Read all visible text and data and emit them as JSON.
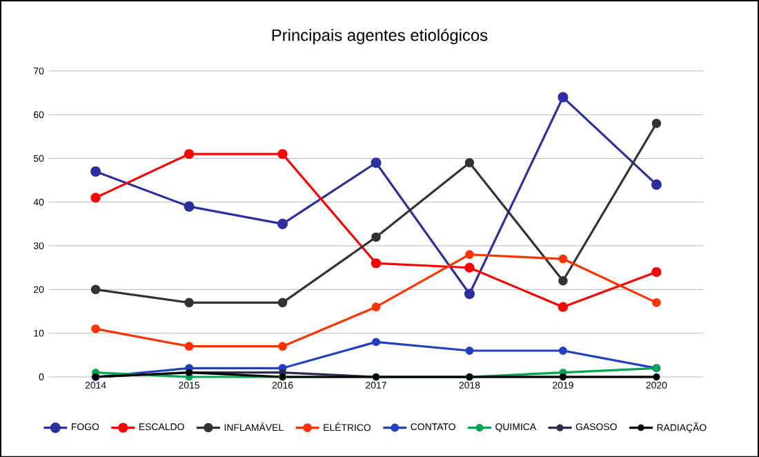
{
  "chart_data": {
    "type": "line",
    "title": "Principais agentes etiológicos",
    "categories": [
      "2014",
      "2015",
      "2016",
      "2017",
      "2018",
      "2019",
      "2020"
    ],
    "series": [
      {
        "name": "FOGO",
        "color": "#2b2fa0",
        "values": [
          47,
          39,
          35,
          49,
          19,
          64,
          44
        ]
      },
      {
        "name": "ESCALDO",
        "color": "#ff0000",
        "values": [
          41,
          51,
          51,
          26,
          25,
          16,
          24
        ]
      },
      {
        "name": "INFLAMÁVEL",
        "color": "#333333",
        "values": [
          20,
          17,
          17,
          32,
          49,
          22,
          58
        ]
      },
      {
        "name": "ELÉTRICO",
        "color": "#ff3300",
        "values": [
          11,
          7,
          7,
          16,
          28,
          27,
          17
        ]
      },
      {
        "name": "CONTATO",
        "color": "#2040c0",
        "values": [
          0,
          2,
          2,
          8,
          6,
          6,
          2
        ]
      },
      {
        "name": "QUIMICA",
        "color": "#00a651",
        "values": [
          1,
          0,
          0,
          0,
          0,
          1,
          2
        ]
      },
      {
        "name": "GASOSO",
        "color": "#2a2a50",
        "values": [
          0,
          1,
          1,
          0,
          0,
          0,
          0
        ]
      },
      {
        "name": "RADIAÇÃO",
        "color": "#000000",
        "values": [
          0,
          1,
          0,
          0,
          0,
          0,
          0
        ]
      }
    ],
    "ylim": [
      0,
      70
    ],
    "yticks": [
      0,
      10,
      20,
      30,
      40,
      50,
      60,
      70
    ],
    "grid": "y",
    "legend": "bottom",
    "marker": "circle",
    "line_style": "solid"
  }
}
